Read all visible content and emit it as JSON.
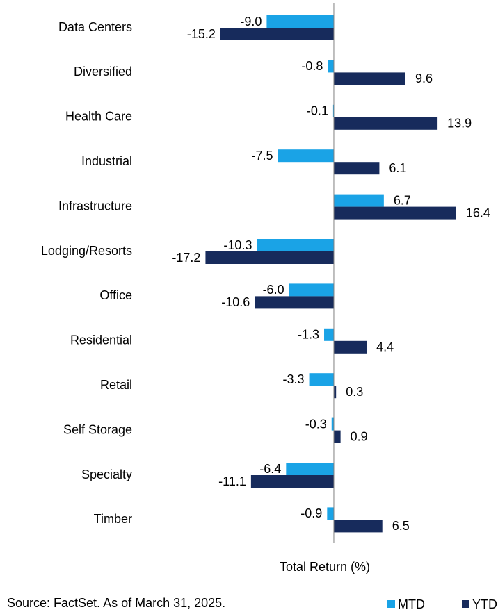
{
  "chart_data": {
    "type": "bar",
    "orientation": "horizontal",
    "categories": [
      "Data Centers",
      "Diversified",
      "Health Care",
      "Industrial",
      "Infrastructure",
      "Lodging/Resorts",
      "Office",
      "Residential",
      "Retail",
      "Self Storage",
      "Specialty",
      "Timber"
    ],
    "series": [
      {
        "name": "MTD",
        "color": "#1aa3e6",
        "values": [
          -9.0,
          -0.8,
          -0.1,
          -7.5,
          6.7,
          -10.3,
          -6.0,
          -1.3,
          -3.3,
          -0.3,
          -6.4,
          -0.9
        ],
        "value_labels": [
          "-9.0",
          "-0.8",
          "-0.1",
          "-7.5",
          "6.7",
          "-10.3",
          "-6.0",
          "-1.3",
          "-3.3",
          "-0.3",
          "-6.4",
          "-0.9"
        ]
      },
      {
        "name": "YTD",
        "color": "#172b5c",
        "values": [
          -15.2,
          9.6,
          13.9,
          6.1,
          16.4,
          -17.2,
          -10.6,
          4.4,
          0.3,
          0.9,
          -11.1,
          6.5
        ],
        "value_labels": [
          "-15.2",
          "9.6",
          "13.9",
          "6.1",
          "16.4",
          "-17.2",
          "-10.6",
          "4.4",
          "0.3",
          "0.9",
          "-11.1",
          "6.5"
        ]
      }
    ],
    "xlim": [
      -20,
      22
    ],
    "x_label": "Total Return (%)",
    "source": "Source: FactSet. As of March 31, 2025."
  }
}
